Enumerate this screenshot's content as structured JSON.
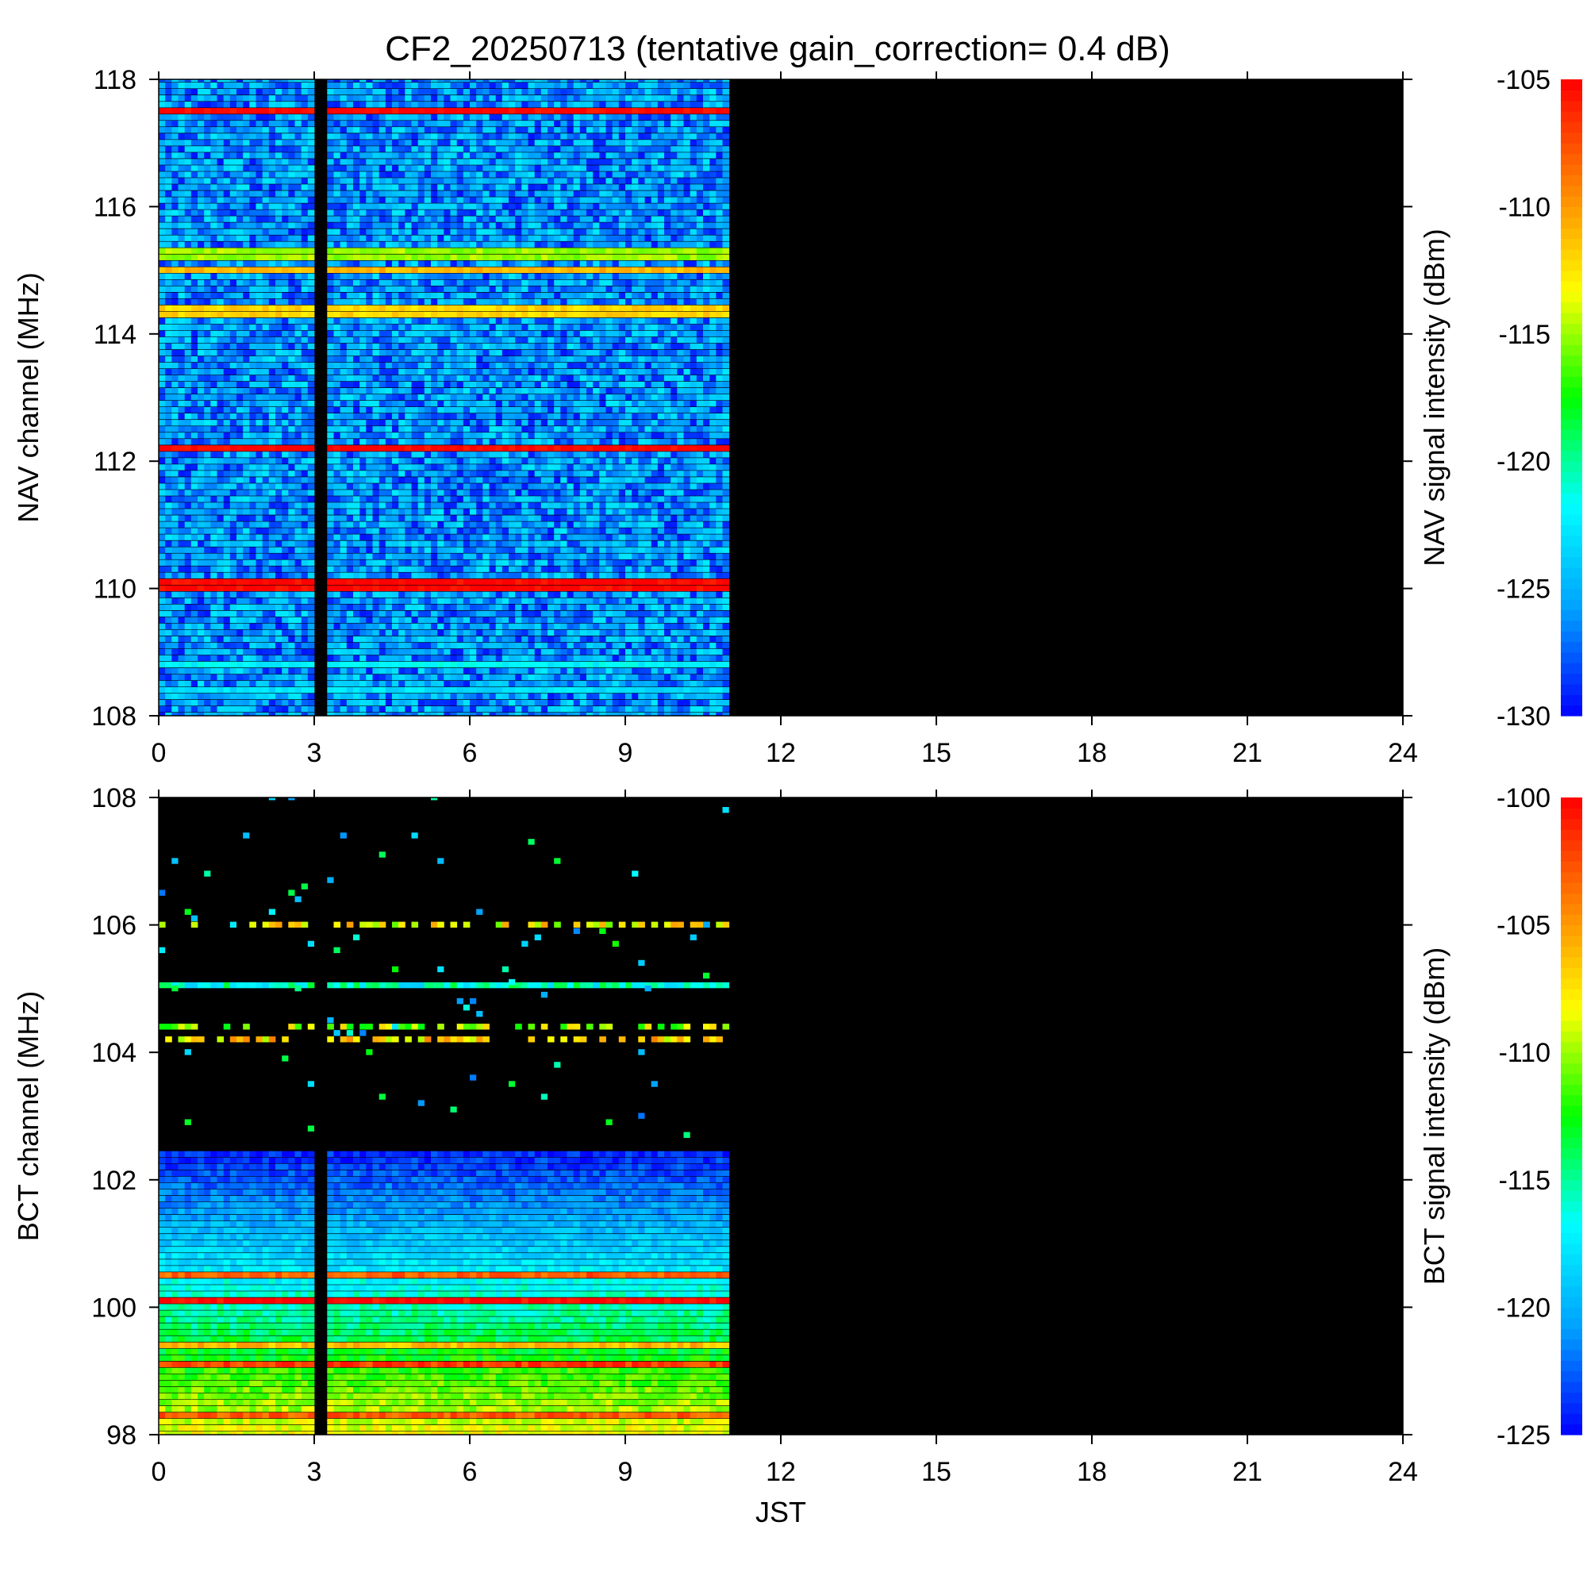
{
  "title": "CF2_20250713 (tentative gain_correction=  0.4 dB)",
  "colors": {
    "background": "#000000",
    "colormap": [
      "#0000ff",
      "#00a0ff",
      "#00ffff",
      "#00ff00",
      "#ffff00",
      "#ff8000",
      "#ff0000"
    ]
  },
  "chart_data": [
    {
      "type": "heatmap",
      "title": "",
      "xlabel": "",
      "ylabel": "NAV channel (MHz)",
      "colorbar_label": "NAV signal intensity (dBm)",
      "xlim": [
        0,
        24
      ],
      "ylim": [
        108,
        118
      ],
      "x_ticks": [
        0,
        3,
        6,
        9,
        12,
        15,
        18,
        21,
        24
      ],
      "y_ticks": [
        108,
        110,
        112,
        114,
        116,
        118
      ],
      "color_range": [
        -130,
        -105
      ],
      "colorbar_ticks": [
        -130,
        -125,
        -120,
        -115,
        -110,
        -105
      ],
      "data_time_range": [
        0,
        11
      ],
      "gaps": [
        [
          3.0,
          3.25
        ]
      ],
      "background_level": -126,
      "strong_channels": [
        {
          "freq": 117.5,
          "level": -105
        },
        {
          "freq": 115.25,
          "level": -115
        },
        {
          "freq": 115.0,
          "level": -111
        },
        {
          "freq": 114.35,
          "level": -112
        },
        {
          "freq": 112.2,
          "level": -105
        },
        {
          "freq": 110.05,
          "level": -105
        },
        {
          "freq": 108.8,
          "level": -122
        },
        {
          "freq": 108.4,
          "level": -123
        }
      ]
    },
    {
      "type": "heatmap",
      "title": "",
      "xlabel": "JST",
      "ylabel": "BCT channel (MHz)",
      "colorbar_label": "BCT signal intensity (dBm)",
      "xlim": [
        0,
        24
      ],
      "ylim": [
        98,
        108
      ],
      "x_ticks": [
        0,
        3,
        6,
        9,
        12,
        15,
        18,
        21,
        24
      ],
      "y_ticks": [
        98,
        100,
        102,
        104,
        106,
        108
      ],
      "color_range": [
        -125,
        -100
      ],
      "colorbar_ticks": [
        -125,
        -120,
        -115,
        -110,
        -105,
        -100
      ],
      "data_time_range": [
        0,
        11
      ],
      "gaps": [
        [
          3.0,
          3.25
        ]
      ],
      "continuous_band": {
        "from": 97.9,
        "to": 102.4,
        "level_at_bottom": -108,
        "level_at_top": -124
      },
      "strong_channels": [
        {
          "freq": 100.1,
          "level": -100
        },
        {
          "freq": 100.5,
          "level": -103
        },
        {
          "freq": 99.4,
          "level": -106
        },
        {
          "freq": 99.1,
          "level": -102
        },
        {
          "freq": 98.3,
          "level": -103
        },
        {
          "freq": 105.05,
          "level": -116
        },
        {
          "freq": 106.0,
          "level": -108
        },
        {
          "freq": 104.4,
          "level": -110
        },
        {
          "freq": 104.2,
          "level": -107
        }
      ]
    }
  ]
}
